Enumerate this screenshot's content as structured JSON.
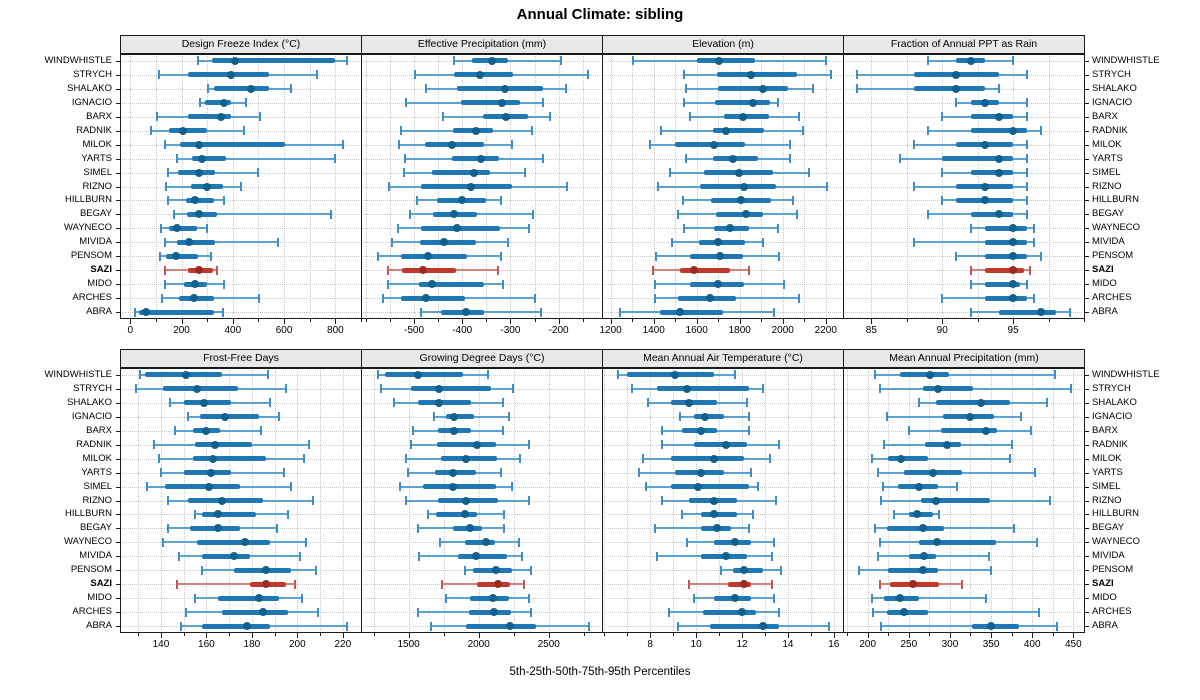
{
  "title": "Annual Climate: sibling",
  "footer": "5th-25th-50th-75th-95th Percentiles",
  "stations": [
    "WINDWHISTLE",
    "STRYCH",
    "SHALAKO",
    "IGNACIO",
    "BARX",
    "RADNIK",
    "MILOK",
    "YARTS",
    "SIMEL",
    "RIZNO",
    "HILLBURN",
    "BEGAY",
    "WAYNECO",
    "MIVIDA",
    "PENSOM",
    "SAZI",
    "MIDO",
    "ARCHES",
    "ABRA"
  ],
  "highlight_station": "SAZI",
  "colors": {
    "blue_line": "#5da2d1",
    "blue_cap": "#3b8ec6",
    "blue_box": "#1f77b4",
    "blue_dot": "#11618f",
    "red_line": "#d4837c",
    "red_cap": "#c4564c",
    "red_box": "#c0392b",
    "red_dot": "#9c2b21",
    "grid": "#c7c7c7",
    "header_bg": "#e8e8e8",
    "border": "#1a1a1a"
  },
  "chart_data": [
    {
      "type": "pointrange",
      "title": "Design Freeze Index (°C)",
      "xlim": [
        -40,
        900
      ],
      "ticks": [
        0,
        200,
        400,
        600,
        800
      ],
      "minor_step": 100,
      "percentiles": [
        5,
        25,
        50,
        75,
        95
      ],
      "values": [
        [
          265,
          320,
          409,
          800,
          845
        ],
        [
          112,
          226,
          392,
          540,
          729
        ],
        [
          305,
          326,
          471,
          543,
          626
        ],
        [
          272,
          290,
          365,
          394,
          453
        ],
        [
          103,
          226,
          355,
          394,
          507
        ],
        [
          79,
          150,
          204,
          298,
          445
        ],
        [
          135,
          193,
          270,
          605,
          830
        ],
        [
          183,
          239,
          278,
          374,
          800
        ],
        [
          148,
          187,
          268,
          331,
          500
        ],
        [
          141,
          235,
          298,
          361,
          431
        ],
        [
          148,
          217,
          252,
          327,
          365
        ],
        [
          170,
          220,
          269,
          337,
          784
        ],
        [
          118,
          152,
          183,
          259,
          301
        ],
        [
          135,
          183,
          230,
          331,
          575
        ],
        [
          115,
          141,
          178,
          265,
          314
        ],
        [
          135,
          226,
          269,
          322,
          337
        ],
        [
          135,
          209,
          252,
          301,
          366
        ],
        [
          125,
          191,
          248,
          327,
          501
        ],
        [
          17,
          34,
          60,
          327,
          363
        ]
      ]
    },
    {
      "type": "pointrange",
      "title": "Effective Precipitation (mm)",
      "xlim": [
        -610,
        -110
      ],
      "ticks": [
        -500,
        -400,
        -300,
        -200
      ],
      "minor_step": 50,
      "percentiles": [
        5,
        25,
        50,
        75,
        95
      ],
      "values": [
        [
          -417,
          -379,
          -338,
          -305,
          -195
        ],
        [
          -497,
          -417,
          -363,
          -294,
          -140
        ],
        [
          -476,
          -410,
          -311,
          -232,
          -185
        ],
        [
          -516,
          -403,
          -318,
          -280,
          -232
        ],
        [
          -439,
          -357,
          -310,
          -263,
          -217
        ],
        [
          -528,
          -419,
          -371,
          -337,
          -256
        ],
        [
          -531,
          -478,
          -421,
          -355,
          -297
        ],
        [
          -519,
          -421,
          -362,
          -324,
          -232
        ],
        [
          -521,
          -462,
          -376,
          -342,
          -270
        ],
        [
          -551,
          -485,
          -381,
          -296,
          -183
        ],
        [
          -494,
          -453,
          -400,
          -350,
          -319
        ],
        [
          -508,
          -460,
          -417,
          -369,
          -253
        ],
        [
          -533,
          -485,
          -410,
          -321,
          -262
        ],
        [
          -546,
          -487,
          -437,
          -371,
          -305
        ],
        [
          -574,
          -528,
          -470,
          -391,
          -319
        ],
        [
          -555,
          -524,
          -482,
          -412,
          -325
        ],
        [
          -553,
          -490,
          -463,
          -355,
          -316
        ],
        [
          -565,
          -528,
          -476,
          -394,
          -250
        ],
        [
          -485,
          -444,
          -393,
          -355,
          -237
        ]
      ]
    },
    {
      "type": "pointrange",
      "title": "Elevation (m)",
      "xlim": [
        1160,
        2280
      ],
      "ticks": [
        1200,
        1400,
        1600,
        1800,
        2000,
        2200
      ],
      "minor_step": 100,
      "percentiles": [
        5,
        25,
        50,
        75,
        95
      ],
      "values": [
        [
          1305,
          1600,
          1702,
          1872,
          2200
        ],
        [
          1543,
          1694,
          1852,
          2065,
          2222
        ],
        [
          1552,
          1697,
          1907,
          2026,
          2142
        ],
        [
          1540,
          1687,
          1861,
          1941,
          1977
        ],
        [
          1568,
          1725,
          1815,
          1938,
          2077
        ],
        [
          1435,
          1676,
          1737,
          1914,
          2093
        ],
        [
          1382,
          1497,
          1682,
          1825,
          2034
        ],
        [
          1552,
          1676,
          1768,
          1883,
          2034
        ],
        [
          1475,
          1632,
          1799,
          1957,
          2123
        ],
        [
          1419,
          1614,
          1821,
          1969,
          2204
        ],
        [
          1537,
          1666,
          1805,
          1944,
          2046
        ],
        [
          1512,
          1691,
          1830,
          1907,
          2068
        ],
        [
          1543,
          1682,
          1753,
          1845,
          1980
        ],
        [
          1486,
          1609,
          1697,
          1825,
          1907
        ],
        [
          1409,
          1568,
          1707,
          1815,
          1984
        ],
        [
          1398,
          1521,
          1589,
          1753,
          1845
        ],
        [
          1404,
          1568,
          1697,
          1821,
          2006
        ],
        [
          1404,
          1512,
          1660,
          1784,
          2077
        ],
        [
          1243,
          1429,
          1521,
          1722,
          1960
        ]
      ]
    },
    {
      "type": "pointrange",
      "title": "Fraction of Annual PPT as Rain",
      "xlim": [
        83,
        100
      ],
      "ticks": [
        85,
        90,
        95
      ],
      "minor_step": 2.5,
      "percentiles": [
        5,
        25,
        50,
        75,
        95
      ],
      "values": [
        [
          89,
          91,
          92,
          93,
          95
        ],
        [
          84,
          88,
          91,
          94,
          96
        ],
        [
          84,
          88,
          91,
          93,
          94
        ],
        [
          91,
          92,
          93,
          94,
          96
        ],
        [
          90,
          92,
          94,
          95,
          96
        ],
        [
          89,
          92,
          95,
          96,
          97
        ],
        [
          88,
          91,
          93,
          95,
          96
        ],
        [
          87,
          90,
          94,
          95,
          96
        ],
        [
          90,
          92,
          94,
          95,
          96
        ],
        [
          88,
          91,
          93,
          95,
          96
        ],
        [
          90,
          91,
          93,
          95,
          96
        ],
        [
          89,
          92,
          94,
          95,
          96
        ],
        [
          92,
          93,
          95,
          96,
          96.5
        ],
        [
          88,
          93,
          95,
          96,
          96.5
        ],
        [
          91,
          93,
          95,
          96,
          97
        ],
        [
          92,
          93,
          95,
          95.8,
          96.2
        ],
        [
          92,
          93,
          95,
          95.5,
          96
        ],
        [
          90,
          93,
          95,
          96,
          96.5
        ],
        [
          92,
          94,
          97,
          98,
          99
        ]
      ]
    },
    {
      "type": "pointrange",
      "title": "Frost-Free Days",
      "xlim": [
        122,
        228
      ],
      "ticks": [
        140,
        160,
        180,
        200,
        220
      ],
      "minor_step": 10,
      "percentiles": [
        5,
        25,
        50,
        75,
        95
      ],
      "values": [
        [
          131,
          133,
          151,
          167,
          187
        ],
        [
          129,
          141,
          156,
          174,
          195
        ],
        [
          144,
          150,
          159,
          171,
          188
        ],
        [
          152,
          157,
          168,
          183,
          192
        ],
        [
          146,
          154,
          160,
          166,
          184
        ],
        [
          137,
          155,
          164,
          180,
          205
        ],
        [
          139,
          154,
          163,
          186,
          203
        ],
        [
          140,
          150,
          162,
          171,
          194
        ],
        [
          134,
          142,
          161,
          175,
          197
        ],
        [
          143,
          152,
          167,
          185,
          207
        ],
        [
          155,
          158,
          165,
          182,
          196
        ],
        [
          143,
          153,
          165,
          175,
          191
        ],
        [
          141,
          156,
          177,
          188,
          204
        ],
        [
          148,
          158,
          172,
          179,
          201
        ],
        [
          158,
          172,
          186,
          197,
          208
        ],
        [
          147,
          179,
          186,
          195,
          199
        ],
        [
          155,
          165,
          183,
          192,
          202
        ],
        [
          151,
          167,
          185,
          196,
          209
        ],
        [
          149,
          158,
          178,
          188,
          222
        ]
      ]
    },
    {
      "type": "pointrange",
      "title": "Growing Degree Days (°C)",
      "xlim": [
        1160,
        2880
      ],
      "ticks": [
        1500,
        2000,
        2500
      ],
      "minor_step": 250,
      "percentiles": [
        5,
        25,
        50,
        75,
        95
      ],
      "values": [
        [
          1280,
          1330,
          1570,
          1890,
          2065
        ],
        [
          1305,
          1520,
          1720,
          2090,
          2245
        ],
        [
          1395,
          1565,
          1720,
          1945,
          2170
        ],
        [
          1680,
          1765,
          1825,
          1970,
          2215
        ],
        [
          1530,
          1710,
          1825,
          1945,
          2175
        ],
        [
          1520,
          1700,
          1990,
          2120,
          2360
        ],
        [
          1480,
          1730,
          1910,
          2130,
          2295
        ],
        [
          1495,
          1685,
          1820,
          1980,
          2160
        ],
        [
          1435,
          1600,
          1815,
          2120,
          2240
        ],
        [
          1480,
          1710,
          1910,
          2135,
          2360
        ],
        [
          1640,
          1695,
          1900,
          1990,
          2180
        ],
        [
          1565,
          1815,
          1940,
          2025,
          2180
        ],
        [
          1725,
          1900,
          2055,
          2120,
          2290
        ],
        [
          1575,
          1850,
          1980,
          2205,
          2310
        ],
        [
          1900,
          1960,
          2120,
          2240,
          2370
        ],
        [
          1740,
          1990,
          2135,
          2220,
          2325
        ],
        [
          1765,
          1940,
          2105,
          2215,
          2360
        ],
        [
          1565,
          1930,
          2110,
          2230,
          2370
        ],
        [
          1660,
          1910,
          2225,
          2410,
          2785
        ]
      ]
    },
    {
      "type": "pointrange",
      "title": "Mean Annual Air Temperature (°C)",
      "xlim": [
        5.9,
        16.4
      ],
      "ticks": [
        8,
        10,
        12,
        14,
        16
      ],
      "minor_step": 1,
      "percentiles": [
        5,
        25,
        50,
        75,
        95
      ],
      "values": [
        [
          6.6,
          7.0,
          9.1,
          10.8,
          11.7
        ],
        [
          7.2,
          8.3,
          9.6,
          12.3,
          12.9
        ],
        [
          7.9,
          8.9,
          9.7,
          10.9,
          12.2
        ],
        [
          9.3,
          9.9,
          10.4,
          11.2,
          12.3
        ],
        [
          8.5,
          9.4,
          10.2,
          10.9,
          12.3
        ],
        [
          8.5,
          9.9,
          11.3,
          12.2,
          13.6
        ],
        [
          7.7,
          8.9,
          10.8,
          12.1,
          13.2
        ],
        [
          7.5,
          9.1,
          10.2,
          11.2,
          12.4
        ],
        [
          7.8,
          8.9,
          10.1,
          12.3,
          12.7
        ],
        [
          8.5,
          9.7,
          10.8,
          11.8,
          13.5
        ],
        [
          9.4,
          10.2,
          10.8,
          11.8,
          12.5
        ],
        [
          8.2,
          10.2,
          10.9,
          11.5,
          12.3
        ],
        [
          9.6,
          10.8,
          11.7,
          12.4,
          13.4
        ],
        [
          8.3,
          10.2,
          11.3,
          12.2,
          13.3
        ],
        [
          11.1,
          11.6,
          12.1,
          12.9,
          13.7
        ],
        [
          9.7,
          11.4,
          12.1,
          12.4,
          13.3
        ],
        [
          9.9,
          10.8,
          11.7,
          12.4,
          13.4
        ],
        [
          8.8,
          10.3,
          12.0,
          12.6,
          13.6
        ],
        [
          9.2,
          10.6,
          12.9,
          13.6,
          15.8
        ]
      ]
    },
    {
      "type": "pointrange",
      "title": "Mean Annual Precipitation (mm)",
      "xlim": [
        170,
        463
      ],
      "ticks": [
        200,
        250,
        300,
        350,
        400,
        450
      ],
      "minor_step": 25,
      "percentiles": [
        5,
        25,
        50,
        75,
        95
      ],
      "values": [
        [
          209,
          239,
          276,
          299,
          428
        ],
        [
          215,
          267,
          286,
          328,
          447
        ],
        [
          262,
          283,
          338,
          373,
          418
        ],
        [
          224,
          291,
          325,
          353,
          387
        ],
        [
          250,
          289,
          344,
          357,
          398
        ],
        [
          220,
          270,
          297,
          314,
          376
        ],
        [
          205,
          225,
          240,
          273,
          373
        ],
        [
          212,
          244,
          279,
          315,
          404
        ],
        [
          219,
          237,
          263,
          286,
          308
        ],
        [
          216,
          265,
          283,
          349,
          422
        ],
        [
          232,
          250,
          260,
          279,
          287
        ],
        [
          209,
          224,
          267,
          293,
          378
        ],
        [
          215,
          262,
          284,
          356,
          406
        ],
        [
          212,
          250,
          269,
          283,
          348
        ],
        [
          190,
          225,
          267,
          285,
          350
        ],
        [
          215,
          227,
          255,
          287,
          315
        ],
        [
          205,
          220,
          239,
          263,
          344
        ],
        [
          206,
          223,
          244,
          273,
          408
        ],
        [
          216,
          327,
          350,
          384,
          430
        ]
      ]
    }
  ]
}
